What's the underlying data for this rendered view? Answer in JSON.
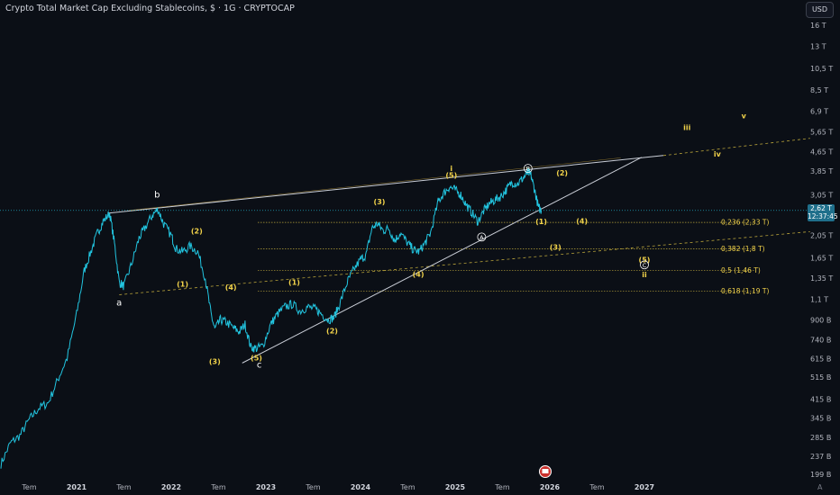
{
  "header": {
    "title": "Crypto Total Market Cap Excluding Stablecoins, $ · 1G · CRYPTOCAP",
    "currency_button": "USD"
  },
  "price_badge": {
    "value": "2,62 T",
    "countdown": "12:37:45",
    "color": "#1f6f8b"
  },
  "footer": {
    "auto_label": "A"
  },
  "colors": {
    "background": "#0b0f16",
    "price_line": "#22c5e0",
    "wave_label": "#f2d34a",
    "trendline": "#c9cdd6"
  },
  "chart_data": {
    "type": "line",
    "scale": "log",
    "y_ticks": [
      "16 T",
      "13 T",
      "10,5 T",
      "8,5 T",
      "6,9 T",
      "5,65 T",
      "4,65 T",
      "3,85 T",
      "3,05 T",
      "2,05 T",
      "1,65 T",
      "1,35 T",
      "1,1 T",
      "900 B",
      "740 B",
      "615 B",
      "515 B",
      "415 B",
      "345 B",
      "285 B",
      "237 B",
      "199 B"
    ],
    "y_tick_values": [
      16,
      13,
      10.5,
      8.5,
      6.9,
      5.65,
      4.65,
      3.85,
      3.05,
      2.05,
      1.65,
      1.35,
      1.1,
      0.9,
      0.74,
      0.615,
      0.515,
      0.415,
      0.345,
      0.285,
      0.237,
      0.199
    ],
    "x_ticks": [
      {
        "label": "Tem",
        "t": 2020.5,
        "year": false
      },
      {
        "label": "2021",
        "t": 2021.0,
        "year": true
      },
      {
        "label": "Tem",
        "t": 2021.5,
        "year": false
      },
      {
        "label": "2022",
        "t": 2022.0,
        "year": true
      },
      {
        "label": "Tem",
        "t": 2022.5,
        "year": false
      },
      {
        "label": "2023",
        "t": 2023.0,
        "year": true
      },
      {
        "label": "Tem",
        "t": 2023.5,
        "year": false
      },
      {
        "label": "2024",
        "t": 2024.0,
        "year": true
      },
      {
        "label": "Tem",
        "t": 2024.5,
        "year": false
      },
      {
        "label": "2025",
        "t": 2025.0,
        "year": true
      },
      {
        "label": "Tem",
        "t": 2025.5,
        "year": false
      },
      {
        "label": "2026",
        "t": 2026.0,
        "year": true
      },
      {
        "label": "Tem",
        "t": 2026.5,
        "year": false
      },
      {
        "label": "2027",
        "t": 2027.0,
        "year": true
      }
    ],
    "series": [
      {
        "points": [
          [
            2020.2,
            0.22
          ],
          [
            2020.3,
            0.27
          ],
          [
            2020.4,
            0.29
          ],
          [
            2020.5,
            0.34
          ],
          [
            2020.6,
            0.38
          ],
          [
            2020.7,
            0.4
          ],
          [
            2020.8,
            0.5
          ],
          [
            2020.9,
            0.62
          ],
          [
            2021.0,
            0.95
          ],
          [
            2021.08,
            1.45
          ],
          [
            2021.15,
            1.75
          ],
          [
            2021.22,
            2.1
          ],
          [
            2021.28,
            2.35
          ],
          [
            2021.35,
            2.55
          ],
          [
            2021.4,
            1.9
          ],
          [
            2021.45,
            1.3
          ],
          [
            2021.5,
            1.25
          ],
          [
            2021.58,
            1.55
          ],
          [
            2021.66,
            2.0
          ],
          [
            2021.72,
            2.2
          ],
          [
            2021.8,
            2.5
          ],
          [
            2021.86,
            2.65
          ],
          [
            2021.92,
            2.3
          ],
          [
            2022.0,
            2.05
          ],
          [
            2022.05,
            1.8
          ],
          [
            2022.12,
            1.75
          ],
          [
            2022.2,
            1.85
          ],
          [
            2022.28,
            1.75
          ],
          [
            2022.36,
            1.35
          ],
          [
            2022.42,
            0.95
          ],
          [
            2022.46,
            0.82
          ],
          [
            2022.52,
            0.9
          ],
          [
            2022.58,
            0.88
          ],
          [
            2022.66,
            0.83
          ],
          [
            2022.72,
            0.8
          ],
          [
            2022.78,
            0.86
          ],
          [
            2022.84,
            0.69
          ],
          [
            2022.9,
            0.68
          ],
          [
            2022.97,
            0.7
          ],
          [
            2023.05,
            0.86
          ],
          [
            2023.12,
            0.95
          ],
          [
            2023.2,
            1.02
          ],
          [
            2023.28,
            1.05
          ],
          [
            2023.36,
            0.98
          ],
          [
            2023.44,
            1.02
          ],
          [
            2023.52,
            1.0
          ],
          [
            2023.58,
            0.96
          ],
          [
            2023.66,
            0.9
          ],
          [
            2023.72,
            0.92
          ],
          [
            2023.78,
            1.05
          ],
          [
            2023.86,
            1.3
          ],
          [
            2023.92,
            1.45
          ],
          [
            2024.0,
            1.62
          ],
          [
            2024.06,
            1.7
          ],
          [
            2024.12,
            2.2
          ],
          [
            2024.18,
            2.3
          ],
          [
            2024.24,
            2.15
          ],
          [
            2024.3,
            2.2
          ],
          [
            2024.36,
            1.95
          ],
          [
            2024.42,
            2.1
          ],
          [
            2024.5,
            1.9
          ],
          [
            2024.56,
            1.78
          ],
          [
            2024.62,
            1.75
          ],
          [
            2024.68,
            1.9
          ],
          [
            2024.74,
            2.1
          ],
          [
            2024.82,
            2.85
          ],
          [
            2024.88,
            3.1
          ],
          [
            2024.94,
            3.3
          ],
          [
            2025.0,
            3.2
          ],
          [
            2025.06,
            3.05
          ],
          [
            2025.12,
            2.75
          ],
          [
            2025.18,
            2.55
          ],
          [
            2025.24,
            2.35
          ],
          [
            2025.3,
            2.6
          ],
          [
            2025.36,
            2.8
          ],
          [
            2025.42,
            2.9
          ],
          [
            2025.48,
            3.0
          ],
          [
            2025.54,
            3.2
          ],
          [
            2025.6,
            3.45
          ],
          [
            2025.66,
            3.4
          ],
          [
            2025.72,
            3.6
          ],
          [
            2025.77,
            3.8
          ],
          [
            2025.8,
            3.7
          ],
          [
            2025.84,
            3.2
          ],
          [
            2025.88,
            2.7
          ],
          [
            2025.91,
            2.62
          ]
        ]
      }
    ],
    "fib_levels": [
      {
        "label": "0,236 (2,33 T)",
        "value": 2.33
      },
      {
        "label": "0,382 (1,8 T)",
        "value": 1.8
      },
      {
        "label": "0,5 (1,46 T)",
        "value": 1.46
      },
      {
        "label": "0,618 (1,19 T)",
        "value": 1.19
      }
    ],
    "wave_labels": [
      {
        "text": "a",
        "t": 2021.45,
        "v": 1.06,
        "style": "white"
      },
      {
        "text": "b",
        "t": 2021.85,
        "v": 3.05,
        "style": "white"
      },
      {
        "text": "c",
        "t": 2022.93,
        "v": 0.58,
        "style": "white"
      },
      {
        "text": "(1)",
        "t": 2022.12,
        "v": 1.28,
        "style": "yellow"
      },
      {
        "text": "(2)",
        "t": 2022.27,
        "v": 2.15,
        "style": "yellow"
      },
      {
        "text": "(3)",
        "t": 2022.46,
        "v": 0.6,
        "style": "yellow"
      },
      {
        "text": "(4)",
        "t": 2022.63,
        "v": 1.24,
        "style": "yellow"
      },
      {
        "text": "(5)",
        "t": 2022.9,
        "v": 0.62,
        "style": "yellow"
      },
      {
        "text": "(1)",
        "t": 2023.3,
        "v": 1.3,
        "style": "yellow"
      },
      {
        "text": "(2)",
        "t": 2023.7,
        "v": 0.81,
        "style": "yellow"
      },
      {
        "text": "(3)",
        "t": 2024.2,
        "v": 2.85,
        "style": "yellow"
      },
      {
        "text": "(4)",
        "t": 2024.61,
        "v": 1.41,
        "style": "yellow"
      },
      {
        "text": "(5)",
        "t": 2024.96,
        "v": 3.7,
        "style": "yellow"
      },
      {
        "text": "i",
        "t": 2024.96,
        "v": 3.95,
        "style": "yellow"
      },
      {
        "text": "(1)",
        "t": 2025.91,
        "v": 2.35,
        "style": "yellow"
      },
      {
        "text": "(2)",
        "t": 2026.13,
        "v": 3.78,
        "style": "yellow"
      },
      {
        "text": "(3)",
        "t": 2026.06,
        "v": 1.83,
        "style": "yellow"
      },
      {
        "text": "(4)",
        "t": 2026.34,
        "v": 2.36,
        "style": "yellow"
      },
      {
        "text": "(5)",
        "t": 2027.0,
        "v": 1.62,
        "style": "yellow"
      },
      {
        "text": "ii",
        "t": 2027.0,
        "v": 1.4,
        "style": "yellow"
      },
      {
        "text": "iii",
        "t": 2027.45,
        "v": 5.9,
        "style": "yellow"
      },
      {
        "text": "iv",
        "t": 2027.77,
        "v": 4.55,
        "style": "yellow"
      },
      {
        "text": "v",
        "t": 2028.05,
        "v": 6.6,
        "style": "yellow"
      }
    ],
    "circled_labels": [
      {
        "text": "B",
        "t": 2025.77,
        "v": 3.95
      },
      {
        "text": "A",
        "t": 2025.28,
        "v": 2.02
      },
      {
        "text": "C",
        "t": 2027.0,
        "v": 1.54
      }
    ],
    "grid": false,
    "legend": "none"
  }
}
